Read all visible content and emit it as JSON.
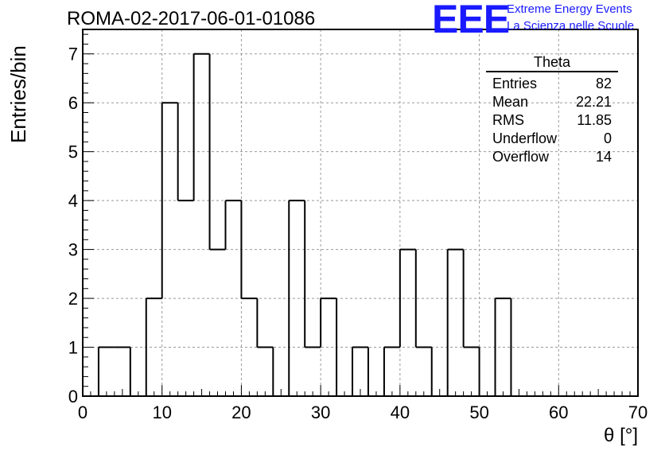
{
  "title": "ROMA-02-2017-06-01-01086",
  "logo": {
    "mark": "EEE",
    "line1": "Extreme Energy Events",
    "line2": "La Scienza nelle Scuole"
  },
  "stats": {
    "title": "Theta",
    "rows": [
      {
        "label": "Entries",
        "value": "82"
      },
      {
        "label": "Mean",
        "value": "22.21"
      },
      {
        "label": "RMS",
        "value": "11.85"
      },
      {
        "label": "Underflow",
        "value": "0"
      },
      {
        "label": "Overflow",
        "value": "14"
      }
    ]
  },
  "chart_data": {
    "type": "bar",
    "title": "ROMA-02-2017-06-01-01086",
    "xlabel": "θ [°]",
    "ylabel": "Entries/bin",
    "xlim": [
      0,
      70
    ],
    "ylim": [
      0,
      7.5
    ],
    "grid": true,
    "x_ticks": [
      0,
      10,
      20,
      30,
      40,
      50,
      60,
      70
    ],
    "y_ticks": [
      0,
      1,
      2,
      3,
      4,
      5,
      6,
      7
    ],
    "bin_edges": [
      0,
      1.9,
      3.8,
      5.7,
      7.6,
      9.5,
      11.4,
      13.3,
      15.2,
      17.1,
      19.0,
      20.9,
      22.8,
      24.7,
      26.6,
      28.5,
      30.4,
      32.3,
      34.2,
      36.1,
      38.0,
      39.9,
      41.8,
      43.7,
      45.6,
      47.5,
      49.4,
      51.3,
      53.2,
      55.1,
      57.0,
      58.9,
      60.8,
      62.7,
      64.6,
      66.5,
      68.4,
      70.3
    ],
    "bins": [
      {
        "x0": 2.0,
        "x1": 4.0,
        "y": 1
      },
      {
        "x0": 4.0,
        "x1": 6.0,
        "y": 1
      },
      {
        "x0": 6.0,
        "x1": 8.0,
        "y": 0
      },
      {
        "x0": 8.0,
        "x1": 10.0,
        "y": 2
      },
      {
        "x0": 10.0,
        "x1": 12.0,
        "y": 6
      },
      {
        "x0": 12.0,
        "x1": 14.0,
        "y": 4
      },
      {
        "x0": 14.0,
        "x1": 16.0,
        "y": 7
      },
      {
        "x0": 16.0,
        "x1": 18.0,
        "y": 3
      },
      {
        "x0": 18.0,
        "x1": 20.0,
        "y": 4
      },
      {
        "x0": 20.0,
        "x1": 22.0,
        "y": 2
      },
      {
        "x0": 22.0,
        "x1": 24.0,
        "y": 1
      },
      {
        "x0": 24.0,
        "x1": 26.0,
        "y": 0
      },
      {
        "x0": 26.0,
        "x1": 28.0,
        "y": 4
      },
      {
        "x0": 28.0,
        "x1": 30.0,
        "y": 1
      },
      {
        "x0": 30.0,
        "x1": 32.0,
        "y": 2
      },
      {
        "x0": 32.0,
        "x1": 34.0,
        "y": 0
      },
      {
        "x0": 34.0,
        "x1": 36.0,
        "y": 1
      },
      {
        "x0": 36.0,
        "x1": 38.0,
        "y": 0
      },
      {
        "x0": 38.0,
        "x1": 40.0,
        "y": 1
      },
      {
        "x0": 40.0,
        "x1": 42.0,
        "y": 3
      },
      {
        "x0": 42.0,
        "x1": 44.0,
        "y": 1
      },
      {
        "x0": 44.0,
        "x1": 46.0,
        "y": 0
      },
      {
        "x0": 46.0,
        "x1": 48.0,
        "y": 3
      },
      {
        "x0": 48.0,
        "x1": 50.0,
        "y": 1
      },
      {
        "x0": 50.0,
        "x1": 52.0,
        "y": 0
      },
      {
        "x0": 52.0,
        "x1": 54.0,
        "y": 2
      }
    ]
  }
}
